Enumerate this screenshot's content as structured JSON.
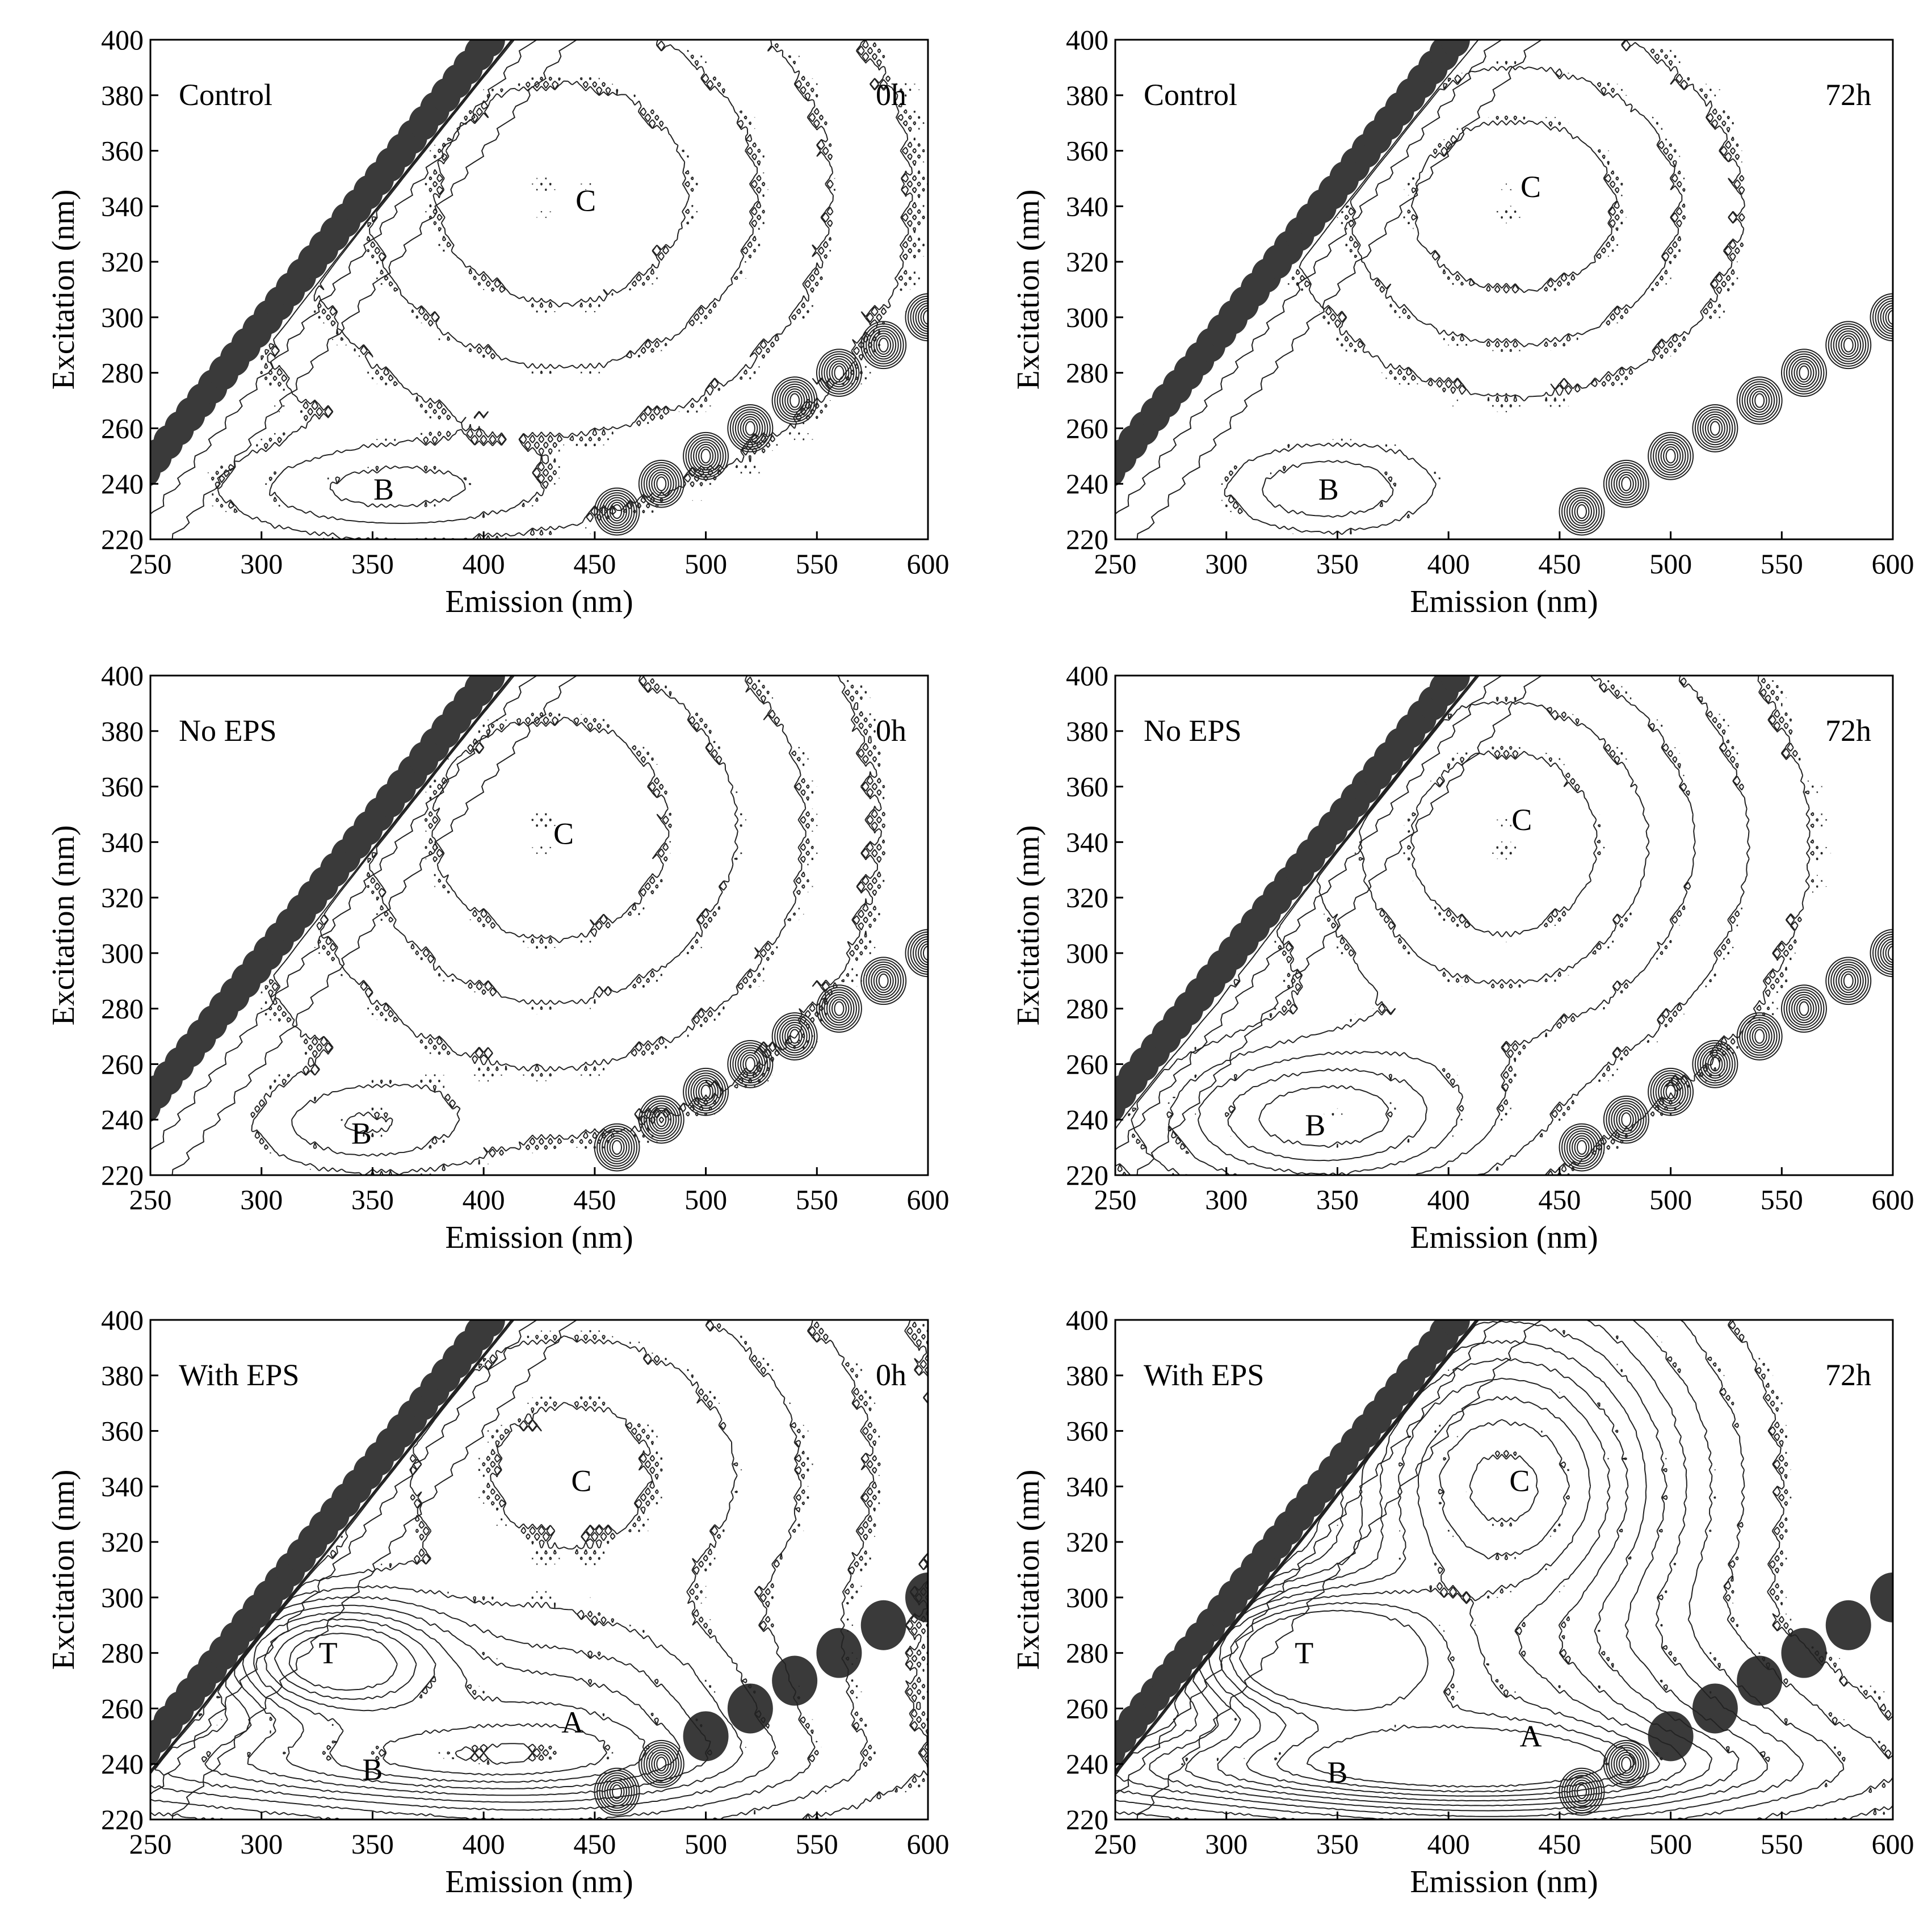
{
  "figure": {
    "panels_count": 6,
    "layout": "3 rows x 2 columns"
  },
  "chart_data": [
    {
      "type": "contour",
      "panel": "control-0h",
      "treatment": "Control",
      "time": "0h",
      "xlabel": "Emission (nm)",
      "ylabel": "Excitation (nm)",
      "xlim": [
        250,
        600
      ],
      "ylim": [
        220,
        400
      ],
      "x_ticks": [
        250,
        300,
        350,
        400,
        450,
        500,
        550,
        600
      ],
      "y_ticks": [
        220,
        240,
        260,
        280,
        300,
        320,
        340,
        360,
        380,
        400
      ],
      "grid": false,
      "peaks": [
        {
          "label": "B",
          "em": 355,
          "ex": 238,
          "amp": 0.25,
          "sx": 45,
          "sy": 10
        },
        {
          "label": "C",
          "em": 435,
          "ex": 345,
          "amp": 0.45,
          "sx": 85,
          "sy": 60
        }
      ],
      "peak_labels": [
        {
          "text": "B",
          "em": 355,
          "ex": 238
        },
        {
          "text": "C",
          "em": 446,
          "ex": 342
        }
      ]
    },
    {
      "type": "contour",
      "panel": "control-72h",
      "treatment": "Control",
      "time": "72h",
      "xlabel": "Emission (nm)",
      "ylabel": "Excitation (nm)",
      "xlim": [
        250,
        600
      ],
      "ylim": [
        220,
        400
      ],
      "x_ticks": [
        250,
        300,
        350,
        400,
        450,
        500,
        550,
        600
      ],
      "y_ticks": [
        220,
        240,
        260,
        280,
        300,
        320,
        340,
        360,
        380,
        400
      ],
      "grid": false,
      "peaks": [
        {
          "label": "B",
          "em": 345,
          "ex": 238,
          "amp": 0.25,
          "sx": 30,
          "sy": 10
        },
        {
          "label": "C",
          "em": 430,
          "ex": 340,
          "amp": 0.35,
          "sx": 60,
          "sy": 40
        }
      ],
      "peak_labels": [
        {
          "text": "B",
          "em": 346,
          "ex": 238
        },
        {
          "text": "C",
          "em": 437,
          "ex": 347
        }
      ]
    },
    {
      "type": "contour",
      "panel": "no-eps-0h",
      "treatment": "No EPS",
      "time": "0h",
      "xlabel": "Emission (nm)",
      "ylabel": "Excitation (nm)",
      "xlim": [
        250,
        600
      ],
      "ylim": [
        220,
        400
      ],
      "x_ticks": [
        250,
        300,
        350,
        400,
        450,
        500,
        550,
        600
      ],
      "y_ticks": [
        220,
        240,
        260,
        280,
        300,
        320,
        340,
        360,
        380,
        400
      ],
      "grid": false,
      "peaks": [
        {
          "label": "B",
          "em": 345,
          "ex": 238,
          "amp": 0.22,
          "sx": 30,
          "sy": 10
        },
        {
          "label": "C",
          "em": 430,
          "ex": 345,
          "amp": 0.45,
          "sx": 80,
          "sy": 60
        }
      ],
      "peak_labels": [
        {
          "text": "B",
          "em": 345,
          "ex": 235
        },
        {
          "text": "C",
          "em": 436,
          "ex": 343
        }
      ]
    },
    {
      "type": "contour",
      "panel": "no-eps-72h",
      "treatment": "No EPS",
      "time": "72h",
      "xlabel": "Emission (nm)",
      "ylabel": "Excitation (nm)",
      "xlim": [
        250,
        600
      ],
      "ylim": [
        220,
        400
      ],
      "x_ticks": [
        250,
        300,
        350,
        400,
        450,
        500,
        550,
        600
      ],
      "y_ticks": [
        220,
        240,
        260,
        280,
        300,
        320,
        340,
        360,
        380,
        400
      ],
      "grid": false,
      "peaks": [
        {
          "label": "B",
          "em": 340,
          "ex": 240,
          "amp": 0.6,
          "sx": 50,
          "sy": 18
        },
        {
          "label": "C",
          "em": 425,
          "ex": 340,
          "amp": 0.55,
          "sx": 70,
          "sy": 55
        }
      ],
      "peak_labels": [
        {
          "text": "B",
          "em": 340,
          "ex": 238
        },
        {
          "text": "C",
          "em": 433,
          "ex": 348
        }
      ]
    },
    {
      "type": "contour",
      "panel": "with-eps-0h",
      "treatment": "With EPS",
      "time": "0h",
      "xlabel": "Emission (nm)",
      "ylabel": "Excitation (nm)",
      "xlim": [
        250,
        600
      ],
      "ylim": [
        220,
        400
      ],
      "x_ticks": [
        250,
        300,
        350,
        400,
        450,
        500,
        550,
        600
      ],
      "y_ticks": [
        220,
        240,
        260,
        280,
        300,
        320,
        340,
        360,
        380,
        400
      ],
      "grid": false,
      "peaks": [
        {
          "label": "T",
          "em": 330,
          "ex": 278,
          "amp": 1.0,
          "sx": 35,
          "sy": 15
        },
        {
          "label": "A",
          "em": 430,
          "ex": 255,
          "amp": 0.55,
          "sx": 70,
          "sy": 22
        },
        {
          "label": "B",
          "em": 350,
          "ex": 240,
          "amp": 0.5,
          "sx": 110,
          "sy": 10
        },
        {
          "label": "C",
          "em": 440,
          "ex": 345,
          "amp": 0.5,
          "sx": 90,
          "sy": 60
        }
      ],
      "peak_labels": [
        {
          "text": "T",
          "em": 330,
          "ex": 280
        },
        {
          "text": "A",
          "em": 440,
          "ex": 255
        },
        {
          "text": "B",
          "em": 350,
          "ex": 238
        },
        {
          "text": "C",
          "em": 444,
          "ex": 342
        }
      ]
    },
    {
      "type": "contour",
      "panel": "with-eps-72h",
      "treatment": "With EPS",
      "time": "72h",
      "xlabel": "Emission (nm)",
      "ylabel": "Excitation (nm)",
      "xlim": [
        250,
        600
      ],
      "ylim": [
        220,
        400
      ],
      "x_ticks": [
        250,
        300,
        350,
        400,
        450,
        500,
        550,
        600
      ],
      "y_ticks": [
        220,
        240,
        260,
        280,
        300,
        320,
        340,
        360,
        380,
        400
      ],
      "grid": false,
      "peaks": [
        {
          "label": "T",
          "em": 335,
          "ex": 280,
          "amp": 1.2,
          "sx": 40,
          "sy": 17
        },
        {
          "label": "A",
          "em": 430,
          "ex": 250,
          "amp": 0.65,
          "sx": 80,
          "sy": 22
        },
        {
          "label": "B",
          "em": 370,
          "ex": 238,
          "amp": 0.7,
          "sx": 120,
          "sy": 10
        },
        {
          "label": "C",
          "em": 425,
          "ex": 340,
          "amp": 1.1,
          "sx": 55,
          "sy": 45
        }
      ],
      "peak_labels": [
        {
          "text": "T",
          "em": 335,
          "ex": 280
        },
        {
          "text": "A",
          "em": 437,
          "ex": 250
        },
        {
          "text": "B",
          "em": 350,
          "ex": 237
        },
        {
          "text": "C",
          "em": 432,
          "ex": 342
        }
      ]
    }
  ]
}
